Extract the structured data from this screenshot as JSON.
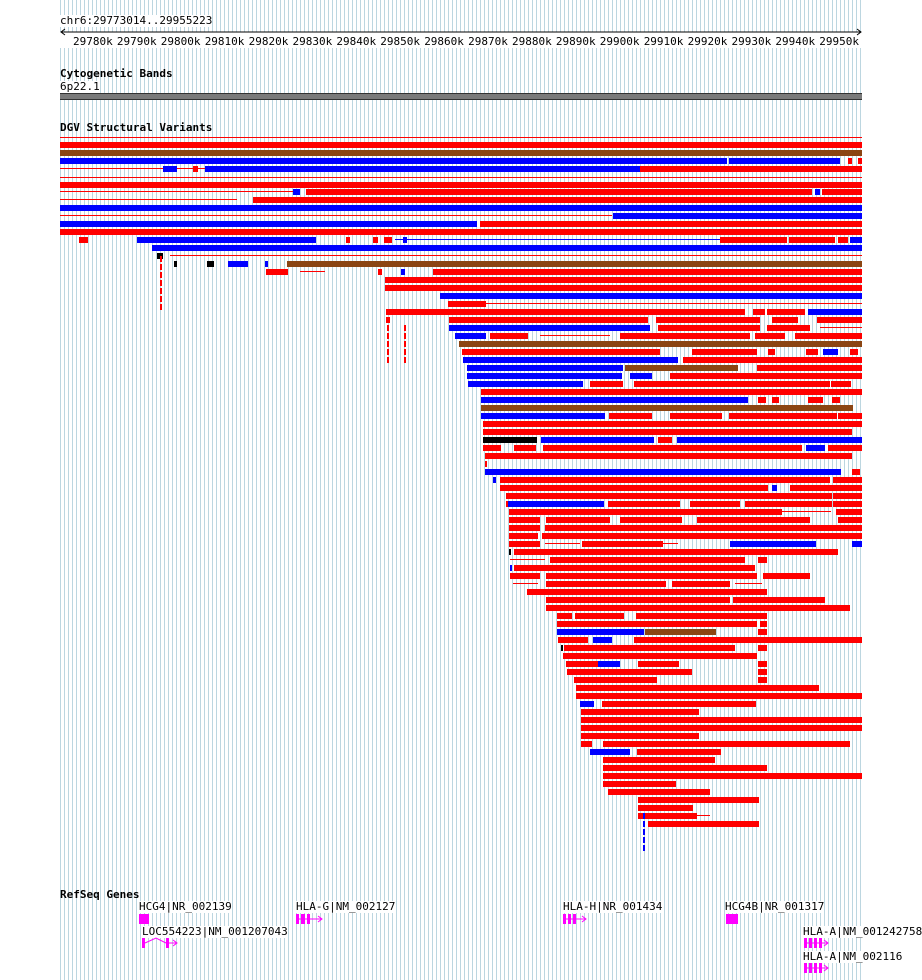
{
  "position": "chr6:29773014..29955223",
  "ruler": {
    "ticks": [
      "29780k",
      "29790k",
      "29800k",
      "29810k",
      "29820k",
      "29830k",
      "29840k",
      "29850k",
      "29860k",
      "29870k",
      "29880k",
      "29890k",
      "29900k",
      "29910k",
      "29920k",
      "29930k",
      "29940k",
      "29950k"
    ]
  },
  "tracks": {
    "cytoband": {
      "title": "Cytogenetic Bands",
      "band": "6p22.1"
    },
    "dgv": {
      "title": "DGV Structural Variants"
    },
    "refseq": {
      "title": "RefSeq Genes",
      "genes": [
        "HCG4|NR_002139",
        "HLA-G|NM_002127",
        "HLA-H|NR_001434",
        "HCG4B|NR_001317",
        "LOC554223|NM_001207043",
        "HLA-A|NM_001242758",
        "HLA-A|NM_002116"
      ]
    }
  },
  "colors": {
    "loss": "#ff0000",
    "gain": "#0000ff",
    "inversion": "#8b4513",
    "complex": "#000000",
    "gene": "#ff00ff",
    "grid": "#bcd6e0",
    "cytoband": "#7a7a7a"
  }
}
